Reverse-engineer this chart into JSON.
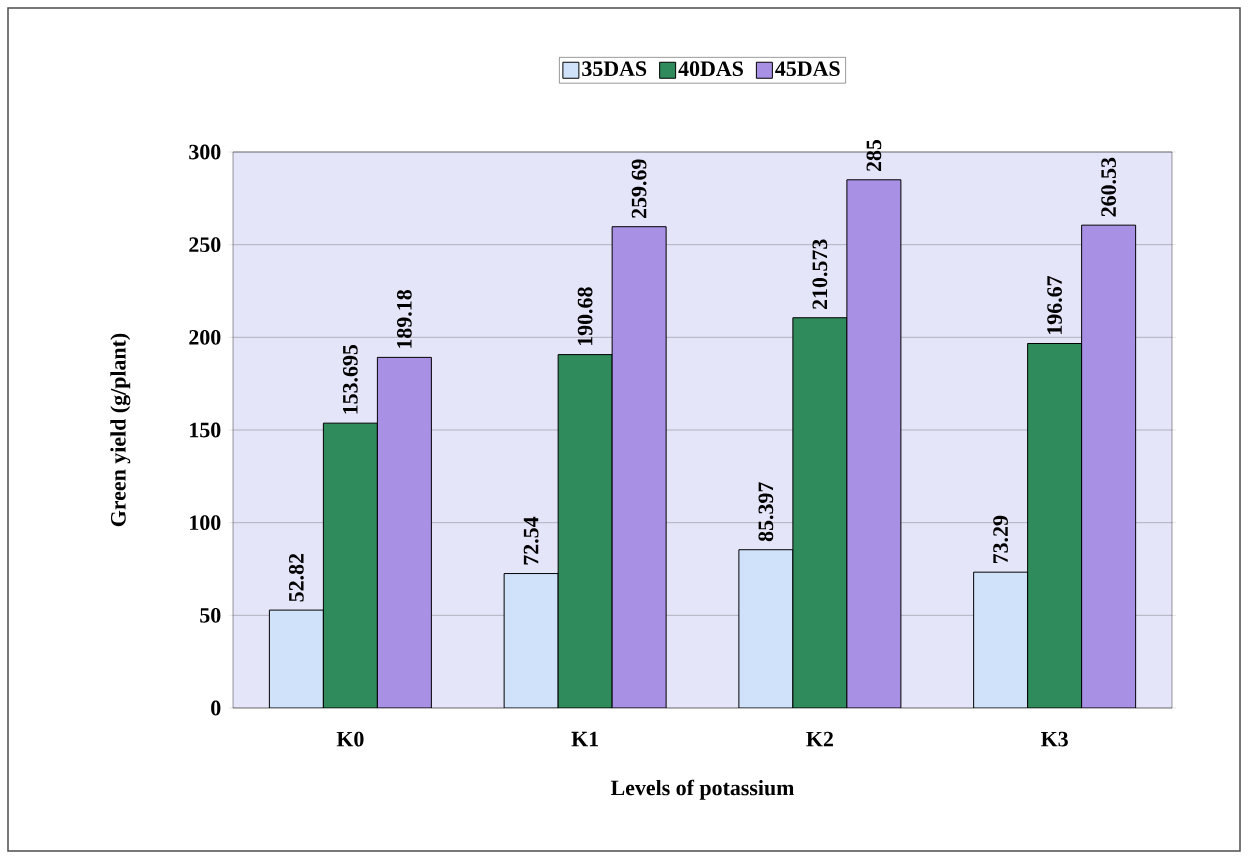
{
  "chart_data": {
    "type": "bar",
    "xlabel": "Levels of potassium",
    "ylabel": "Green yield (g/plant)",
    "categories": [
      "K0",
      "K1",
      "K2",
      "K3"
    ],
    "series": [
      {
        "name": "35DAS",
        "color": "#cfe2fa",
        "values": [
          52.82,
          72.54,
          85.397,
          73.29
        ]
      },
      {
        "name": "40DAS",
        "color": "#2f8a5c",
        "values": [
          153.695,
          190.68,
          210.573,
          196.67
        ]
      },
      {
        "name": "45DAS",
        "color": "#a890e4",
        "values": [
          189.18,
          259.69,
          285,
          260.53
        ]
      }
    ],
    "ylim": [
      0,
      300
    ],
    "yticks": [
      0,
      50,
      100,
      150,
      200,
      250,
      300
    ],
    "grid": "y",
    "legend": "top",
    "data_labels": true
  }
}
